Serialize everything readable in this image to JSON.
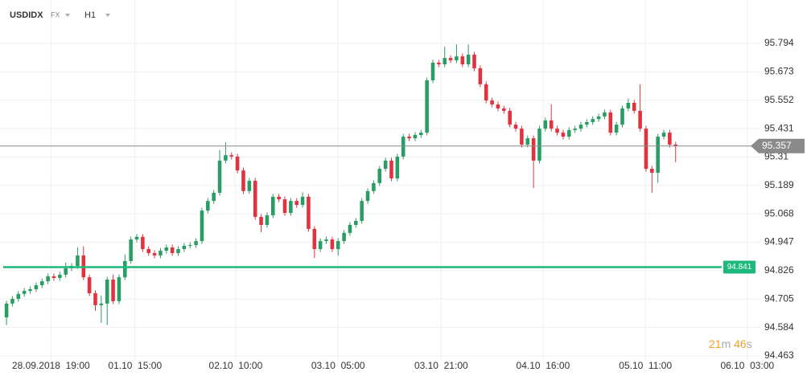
{
  "chart_data": {
    "type": "candlestick",
    "symbol": "USDIDX",
    "market": "FX",
    "interval": "H1",
    "up_color": "#2a9d64",
    "down_color": "#e2323f",
    "grid": true,
    "open": [
      94.627,
      94.686,
      94.706,
      94.727,
      94.74,
      94.747,
      94.764,
      94.781,
      94.802,
      94.795,
      94.809,
      94.836,
      94.846,
      94.891,
      94.798,
      94.73,
      94.679,
      94.686,
      94.788,
      94.696,
      94.798,
      94.867,
      94.959,
      94.97,
      94.918,
      94.901,
      94.891,
      94.911,
      94.925,
      94.901,
      94.918,
      94.932,
      94.935,
      94.952,
      95.082,
      95.123,
      95.158,
      95.295,
      95.318,
      95.312,
      95.253,
      95.165,
      95.209,
      95.055,
      95.021,
      95.062,
      95.141,
      95.13,
      95.072,
      95.123,
      95.106,
      95.141,
      95.004,
      94.918,
      94.952,
      94.959,
      94.918,
      94.952,
      94.987,
      95.021,
      95.038,
      95.123,
      95.165,
      95.199,
      95.26,
      95.295,
      95.219,
      95.312,
      95.397,
      95.39,
      95.404,
      95.414,
      95.637,
      95.712,
      95.705,
      95.732,
      95.722,
      95.739,
      95.705,
      95.746,
      95.688,
      95.62,
      95.551,
      95.534,
      95.517,
      95.507,
      95.448,
      95.431,
      95.363,
      95.39,
      95.295,
      95.431,
      95.466,
      95.431,
      95.414,
      95.397,
      95.425,
      95.431,
      95.448,
      95.459,
      95.472,
      95.483,
      95.5,
      95.414,
      95.448,
      95.517,
      95.541,
      95.507,
      95.431,
      95.26,
      95.243,
      95.397,
      95.414,
      95.363
    ],
    "high": [
      94.698,
      94.718,
      94.739,
      94.752,
      94.759,
      94.776,
      94.793,
      94.814,
      94.814,
      94.821,
      94.86,
      94.858,
      94.925,
      94.93,
      94.81,
      94.742,
      94.72,
      94.8,
      94.81,
      94.81,
      94.895,
      94.971,
      94.982,
      94.982,
      94.93,
      94.913,
      94.923,
      94.937,
      94.937,
      94.93,
      94.944,
      94.947,
      94.964,
      95.094,
      95.135,
      95.17,
      95.34,
      95.373,
      95.33,
      95.324,
      95.265,
      95.221,
      95.221,
      95.067,
      95.074,
      95.153,
      95.153,
      95.142,
      95.135,
      95.135,
      95.16,
      95.153,
      95.016,
      94.964,
      94.971,
      94.971,
      94.964,
      94.999,
      95.033,
      95.05,
      95.135,
      95.177,
      95.211,
      95.272,
      95.307,
      95.307,
      95.324,
      95.409,
      95.409,
      95.416,
      95.426,
      95.649,
      95.724,
      95.724,
      95.78,
      95.744,
      95.79,
      95.751,
      95.79,
      95.758,
      95.7,
      95.632,
      95.563,
      95.546,
      95.529,
      95.519,
      95.46,
      95.443,
      95.402,
      95.402,
      95.443,
      95.478,
      95.535,
      95.443,
      95.426,
      95.437,
      95.443,
      95.46,
      95.471,
      95.484,
      95.495,
      95.512,
      95.512,
      95.46,
      95.529,
      95.56,
      95.553,
      95.62,
      95.443,
      95.272,
      95.409,
      95.426,
      95.426,
      95.375
    ],
    "low": [
      94.594,
      94.674,
      94.694,
      94.715,
      94.728,
      94.735,
      94.752,
      94.769,
      94.783,
      94.783,
      94.797,
      94.824,
      94.834,
      94.786,
      94.718,
      94.655,
      94.604,
      94.594,
      94.684,
      94.684,
      94.786,
      94.855,
      94.947,
      94.906,
      94.889,
      94.879,
      94.879,
      94.899,
      94.889,
      94.889,
      94.906,
      94.92,
      94.923,
      94.94,
      95.07,
      95.111,
      95.146,
      95.283,
      95.3,
      95.241,
      95.153,
      95.153,
      95.043,
      94.99,
      95.009,
      95.05,
      95.118,
      95.06,
      95.06,
      95.094,
      95.094,
      94.992,
      94.88,
      94.906,
      94.94,
      94.906,
      94.89,
      94.94,
      94.975,
      95.009,
      95.026,
      95.111,
      95.153,
      95.187,
      95.248,
      95.207,
      95.207,
      95.3,
      95.378,
      95.378,
      95.392,
      95.402,
      95.625,
      95.693,
      95.693,
      95.71,
      95.71,
      95.693,
      95.693,
      95.676,
      95.608,
      95.539,
      95.522,
      95.505,
      95.495,
      95.436,
      95.419,
      95.351,
      95.351,
      95.178,
      95.283,
      95.419,
      95.419,
      95.402,
      95.385,
      95.385,
      95.413,
      95.419,
      95.436,
      95.447,
      95.46,
      95.471,
      95.402,
      95.402,
      95.436,
      95.505,
      95.495,
      95.419,
      95.248,
      95.158,
      95.2,
      95.385,
      95.351,
      95.288
    ],
    "close": [
      94.686,
      94.706,
      94.727,
      94.74,
      94.747,
      94.764,
      94.781,
      94.802,
      94.795,
      94.809,
      94.836,
      94.846,
      94.891,
      94.798,
      94.73,
      94.679,
      94.686,
      94.788,
      94.696,
      94.798,
      94.867,
      94.959,
      94.97,
      94.918,
      94.901,
      94.891,
      94.911,
      94.925,
      94.901,
      94.918,
      94.932,
      94.935,
      94.952,
      95.082,
      95.123,
      95.158,
      95.295,
      95.318,
      95.312,
      95.253,
      95.165,
      95.209,
      95.055,
      95.021,
      95.062,
      95.141,
      95.13,
      95.072,
      95.123,
      95.106,
      95.141,
      95.004,
      94.918,
      94.952,
      94.959,
      94.918,
      94.952,
      94.987,
      95.021,
      95.038,
      95.123,
      95.165,
      95.199,
      95.26,
      95.295,
      95.219,
      95.312,
      95.397,
      95.39,
      95.404,
      95.414,
      95.637,
      95.712,
      95.705,
      95.732,
      95.722,
      95.739,
      95.705,
      95.746,
      95.688,
      95.62,
      95.551,
      95.534,
      95.517,
      95.507,
      95.448,
      95.431,
      95.363,
      95.39,
      95.295,
      95.431,
      95.466,
      95.431,
      95.414,
      95.397,
      95.425,
      95.431,
      95.448,
      95.459,
      95.472,
      95.483,
      95.5,
      95.414,
      95.448,
      95.517,
      95.541,
      95.507,
      95.431,
      95.26,
      95.243,
      95.397,
      95.414,
      95.363,
      95.356
    ],
    "xlim": [
      -1.1,
      127.3
    ],
    "xticks": [
      {
        "value": 7.5,
        "label": "28.09.2018  19:00"
      },
      {
        "value": 21.7,
        "label": "01.10  15:00"
      },
      {
        "value": 38.7,
        "label": "02.10  10:00"
      },
      {
        "value": 56,
        "label": "03.10  05:00"
      },
      {
        "value": 73.4,
        "label": "03.10  21:00"
      },
      {
        "value": 90.6,
        "label": "04.10  16:00"
      },
      {
        "value": 107.9,
        "label": "05.10  11:00"
      },
      {
        "value": 125.1,
        "label": "06.10  03:00"
      }
    ],
    "ylim": [
      94.398,
      95.979
    ],
    "yticks": [
      95.794,
      95.673,
      95.552,
      95.431,
      95.31,
      95.189,
      95.068,
      94.947,
      94.826,
      94.705,
      94.584,
      94.463
    ],
    "last_price": {
      "value": 95.357,
      "color": "#8a8a8a"
    },
    "level_line": {
      "value": 94.841,
      "color": "#1db97c"
    },
    "countdown": [
      "21",
      "m",
      "46",
      "s"
    ]
  }
}
